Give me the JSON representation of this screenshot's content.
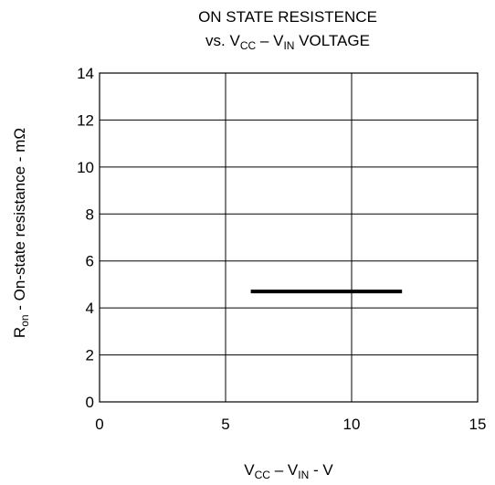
{
  "chart_data": {
    "type": "line",
    "title": {
      "line1": "ON STATE RESISTENCE",
      "line2": {
        "prefix": "vs. V",
        "sub1": "CC",
        "mid": " – V",
        "sub2": "IN",
        "suffix": " VOLTAGE"
      }
    },
    "xlabel": {
      "base1": "V",
      "sub1": "CC",
      "mid": " – V",
      "sub2": "IN",
      "suffix": " - V"
    },
    "ylabel": {
      "base": "R",
      "sub": "on",
      "suffix": " - On-state resistance - mΩ"
    },
    "xlim": [
      0,
      15
    ],
    "ylim": [
      0,
      14
    ],
    "xticks": [
      0,
      5,
      10,
      15
    ],
    "yticks": [
      0,
      2,
      4,
      6,
      8,
      10,
      12,
      14
    ],
    "grid": true,
    "series": [
      {
        "x": [
          6,
          12
        ],
        "y": [
          4.7,
          4.7
        ]
      }
    ]
  }
}
